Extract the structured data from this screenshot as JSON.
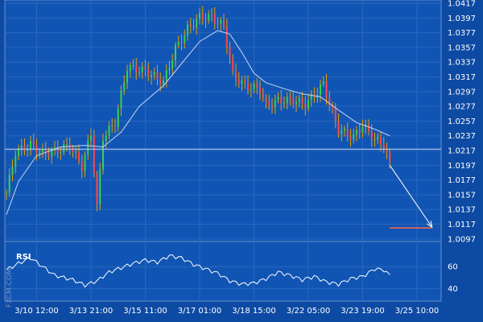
{
  "chart_data": [
    {
      "type": "candlestick",
      "title": "",
      "watermark": "FXCM.COM",
      "y_ticks": [
        "1.0417",
        "1.0397",
        "1.0377",
        "1.0357",
        "1.0337",
        "1.0317",
        "1.0297",
        "1.0277",
        "1.0257",
        "1.0237",
        "1.0217",
        "1.0197",
        "1.0177",
        "1.0157",
        "1.0137",
        "1.0117",
        "1.0097"
      ],
      "ylim": [
        1.0087,
        1.0417
      ],
      "x_ticks": [
        "3/10 12:00",
        "3/13 21:00",
        "3/15 11:00",
        "3/17 01:00",
        "3/18 15:00",
        "3/22 05:00",
        "3/23 19:00",
        "3/25 10:00"
      ],
      "grid": true,
      "price_line": {
        "value": 1.0219
      },
      "target_level": {
        "value": 1.0112
      },
      "forecast_arrow": {
        "from": {
          "index": 127,
          "value": 1.0197
        },
        "to": {
          "index": 141,
          "value": 1.0113
        }
      },
      "series": [
        {
          "name": "",
          "points": [
            {
              "i": 0,
              "value": 1.016
            },
            {
              "i": 3,
              "value": 1.0215
            },
            {
              "i": 8,
              "value": 1.0225
            },
            {
              "i": 12,
              "value": 1.0213
            },
            {
              "i": 16,
              "value": 1.0216
            },
            {
              "i": 21,
              "value": 1.0224
            },
            {
              "i": 25,
              "value": 1.0195
            },
            {
              "i": 28,
              "value": 1.024
            },
            {
              "i": 30,
              "value": 1.014
            },
            {
              "i": 32,
              "value": 1.0235
            },
            {
              "i": 36,
              "value": 1.0255
            },
            {
              "i": 40,
              "value": 1.033
            },
            {
              "i": 46,
              "value": 1.0325
            },
            {
              "i": 52,
              "value": 1.031
            },
            {
              "i": 56,
              "value": 1.0355
            },
            {
              "i": 60,
              "value": 1.0382
            },
            {
              "i": 64,
              "value": 1.0398
            },
            {
              "i": 68,
              "value": 1.0398
            },
            {
              "i": 72,
              "value": 1.0385
            },
            {
              "i": 75,
              "value": 1.032
            },
            {
              "i": 79,
              "value": 1.0305
            },
            {
              "i": 84,
              "value": 1.03
            },
            {
              "i": 86,
              "value": 1.0278
            },
            {
              "i": 90,
              "value": 1.0285
            },
            {
              "i": 95,
              "value": 1.0285
            },
            {
              "i": 99,
              "value": 1.028
            },
            {
              "i": 103,
              "value": 1.0297
            },
            {
              "i": 105,
              "value": 1.0308
            },
            {
              "i": 107,
              "value": 1.028
            },
            {
              "i": 110,
              "value": 1.0245
            },
            {
              "i": 115,
              "value": 1.0235
            },
            {
              "i": 118,
              "value": 1.0252
            },
            {
              "i": 122,
              "value": 1.0232
            },
            {
              "i": 125,
              "value": 1.0225
            },
            {
              "i": 127,
              "value": 1.0197
            }
          ]
        },
        {
          "name": "moving average",
          "points": [
            {
              "i": 0,
              "value": 1.013
            },
            {
              "i": 4,
              "value": 1.0175
            },
            {
              "i": 10,
              "value": 1.021
            },
            {
              "i": 18,
              "value": 1.0222
            },
            {
              "i": 26,
              "value": 1.0224
            },
            {
              "i": 32,
              "value": 1.0222
            },
            {
              "i": 38,
              "value": 1.0242
            },
            {
              "i": 44,
              "value": 1.0277
            },
            {
              "i": 52,
              "value": 1.0305
            },
            {
              "i": 58,
              "value": 1.0335
            },
            {
              "i": 64,
              "value": 1.0365
            },
            {
              "i": 70,
              "value": 1.038
            },
            {
              "i": 74,
              "value": 1.0375
            },
            {
              "i": 78,
              "value": 1.035
            },
            {
              "i": 82,
              "value": 1.0322
            },
            {
              "i": 86,
              "value": 1.0309
            },
            {
              "i": 92,
              "value": 1.0301
            },
            {
              "i": 98,
              "value": 1.0294
            },
            {
              "i": 104,
              "value": 1.029
            },
            {
              "i": 110,
              "value": 1.0272
            },
            {
              "i": 116,
              "value": 1.0255
            },
            {
              "i": 122,
              "value": 1.0246
            },
            {
              "i": 127,
              "value": 1.0237
            }
          ]
        }
      ]
    },
    {
      "type": "line",
      "title": "RSI",
      "y_ticks": [
        "60",
        "40"
      ],
      "ylim": [
        30,
        80
      ],
      "series": [
        {
          "name": "RSI",
          "points": [
            {
              "i": 0,
              "value": 57
            },
            {
              "i": 4,
              "value": 63
            },
            {
              "i": 8,
              "value": 68
            },
            {
              "i": 12,
              "value": 60
            },
            {
              "i": 16,
              "value": 52
            },
            {
              "i": 22,
              "value": 48
            },
            {
              "i": 26,
              "value": 43
            },
            {
              "i": 30,
              "value": 47
            },
            {
              "i": 34,
              "value": 55
            },
            {
              "i": 38,
              "value": 59
            },
            {
              "i": 42,
              "value": 63
            },
            {
              "i": 46,
              "value": 66
            },
            {
              "i": 50,
              "value": 64
            },
            {
              "i": 54,
              "value": 70
            },
            {
              "i": 58,
              "value": 68
            },
            {
              "i": 62,
              "value": 62
            },
            {
              "i": 66,
              "value": 58
            },
            {
              "i": 70,
              "value": 54
            },
            {
              "i": 74,
              "value": 47
            },
            {
              "i": 78,
              "value": 44
            },
            {
              "i": 82,
              "value": 45
            },
            {
              "i": 86,
              "value": 49
            },
            {
              "i": 90,
              "value": 55
            },
            {
              "i": 94,
              "value": 52
            },
            {
              "i": 98,
              "value": 48
            },
            {
              "i": 102,
              "value": 51
            },
            {
              "i": 106,
              "value": 46
            },
            {
              "i": 110,
              "value": 44
            },
            {
              "i": 114,
              "value": 49
            },
            {
              "i": 118,
              "value": 51
            },
            {
              "i": 122,
              "value": 58
            },
            {
              "i": 125,
              "value": 57
            },
            {
              "i": 127,
              "value": 52
            }
          ]
        }
      ]
    }
  ]
}
